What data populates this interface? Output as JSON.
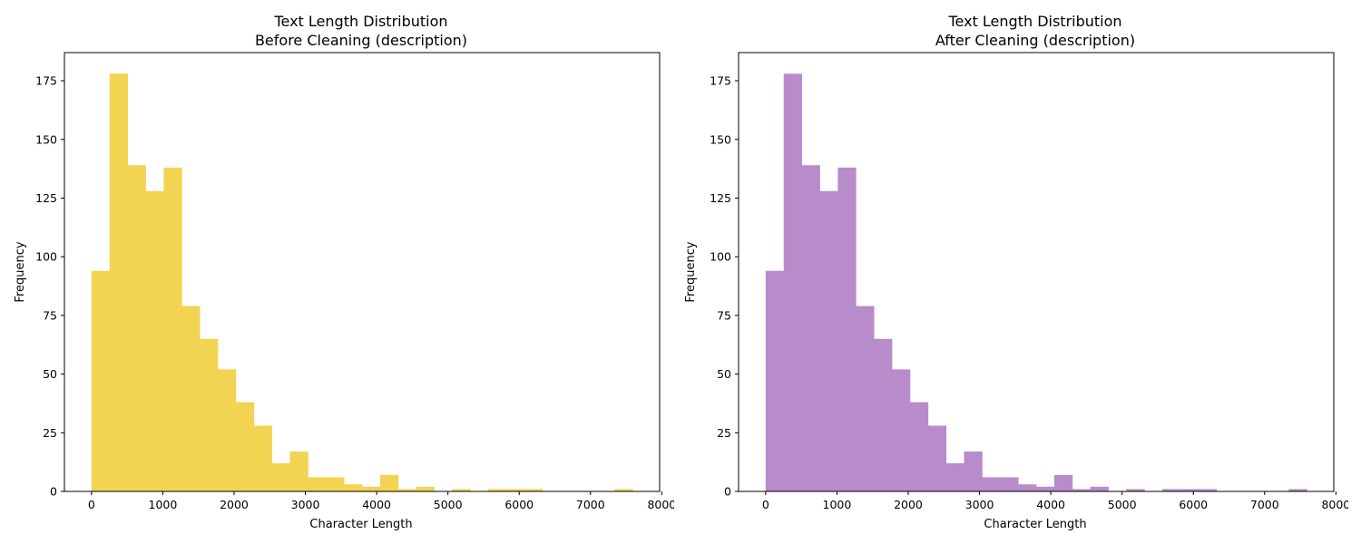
{
  "chart_data": [
    {
      "type": "bar",
      "title_line1": "Text Length Distribution",
      "title_line2": "Before Cleaning (description)",
      "xlabel": "Character Length",
      "ylabel": "Frequency",
      "color": "#f2d452",
      "bin_edges": [
        0,
        253,
        506,
        759,
        1012,
        1265,
        1518,
        1771,
        2024,
        2277,
        2530,
        2783,
        3036,
        3289,
        3542,
        3795,
        4048,
        4301,
        4554,
        4807,
        5060,
        5313,
        5566,
        5819,
        6072,
        6325,
        6578,
        6831,
        7084,
        7337,
        7590
      ],
      "values": [
        94,
        178,
        139,
        128,
        138,
        79,
        65,
        52,
        38,
        28,
        12,
        17,
        6,
        6,
        3,
        2,
        7,
        1,
        2,
        0,
        1,
        0,
        1,
        1,
        1,
        0,
        0,
        0,
        0,
        1
      ],
      "xlim": [
        -380,
        7970
      ],
      "ylim": [
        0,
        187
      ],
      "xticks": [
        0,
        1000,
        2000,
        3000,
        4000,
        5000,
        6000,
        7000,
        8000
      ],
      "yticks": [
        0,
        25,
        50,
        75,
        100,
        125,
        150,
        175
      ]
    },
    {
      "type": "bar",
      "title_line1": "Text Length Distribution",
      "title_line2": "After Cleaning (description)",
      "xlabel": "Character Length",
      "ylabel": "Frequency",
      "color": "#b88bca",
      "bin_edges": [
        0,
        253,
        506,
        759,
        1012,
        1265,
        1518,
        1771,
        2024,
        2277,
        2530,
        2783,
        3036,
        3289,
        3542,
        3795,
        4048,
        4301,
        4554,
        4807,
        5060,
        5313,
        5566,
        5819,
        6072,
        6325,
        6578,
        6831,
        7084,
        7337,
        7590
      ],
      "values": [
        94,
        178,
        139,
        128,
        138,
        79,
        65,
        52,
        38,
        28,
        12,
        17,
        6,
        6,
        3,
        2,
        7,
        1,
        2,
        0,
        1,
        0,
        1,
        1,
        1,
        0,
        0,
        0,
        0,
        1
      ],
      "xlim": [
        -380,
        7970
      ],
      "ylim": [
        0,
        187
      ],
      "xticks": [
        0,
        1000,
        2000,
        3000,
        4000,
        5000,
        6000,
        7000,
        8000
      ],
      "yticks": [
        0,
        25,
        50,
        75,
        100,
        125,
        150,
        175
      ]
    }
  ]
}
